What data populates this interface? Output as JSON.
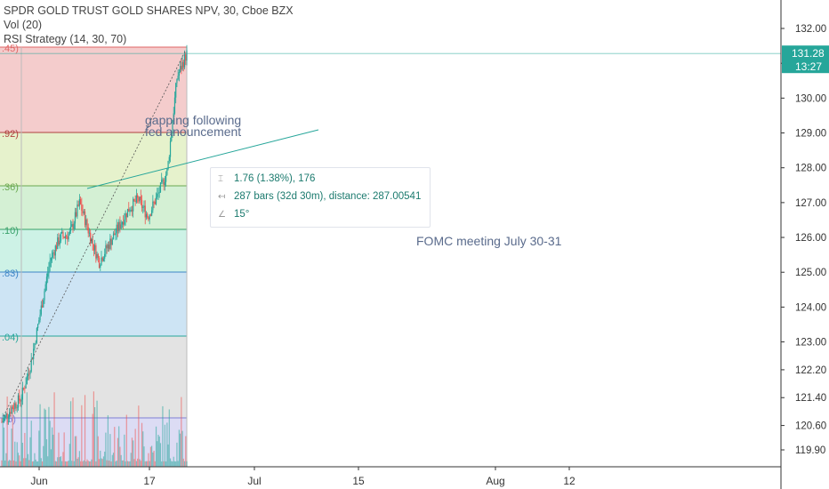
{
  "legend": {
    "title": "SPDR GOLD TRUST GOLD SHARES NPV, 30, Cboe BZX",
    "vol": "Vol (20)",
    "rsi": "RSI Strategy (14, 30, 70)"
  },
  "measure": {
    "price_change": "1.76 (1.38%), 176",
    "bars": "287 bars (32d 30m), distance: 287.00541",
    "angle": "15°"
  },
  "annotations": {
    "gap_line1": "gapping following",
    "gap_line2": "fed anouncement",
    "fomc": "FOMC meeting July 30-31"
  },
  "price_badge": {
    "price": "131.28",
    "time": "13:27"
  },
  "colors": {
    "accent": "#26a69a",
    "price_line": "#26a69a",
    "up": "#26a69a",
    "down": "#ef5350"
  },
  "chart_data": {
    "type": "candlestick",
    "y_axis": {
      "ticks": [
        "132.00",
        "131.00",
        "130.00",
        "129.00",
        "128.00",
        "127.00",
        "126.00",
        "125.00",
        "124.00",
        "123.00",
        "122.20",
        "121.40",
        "120.60",
        "119.90"
      ],
      "ylim": [
        119.6,
        132.4
      ]
    },
    "x_axis": {
      "ticks": [
        "Jun",
        "17",
        "Jul",
        "15",
        "Aug",
        "12"
      ]
    },
    "fib_labels": [
      ".45)",
      ".92)",
      ".36)",
      ".10)",
      ".83)",
      ".04)",
      "75)"
    ],
    "ohlc_path": [
      [
        "May 28",
        120.7
      ],
      [
        "May 29",
        121.1
      ],
      [
        "May 30",
        121.4
      ],
      [
        "May 31",
        122.4
      ],
      [
        "Jun 3",
        123.9
      ],
      [
        "Jun 4",
        125.4
      ],
      [
        "Jun 5",
        126.0
      ],
      [
        "Jun 6",
        126.1
      ],
      [
        "Jun 7",
        127.0
      ],
      [
        "Jun 10",
        126.1
      ],
      [
        "Jun 11",
        125.3
      ],
      [
        "Jun 12",
        125.8
      ],
      [
        "Jun 13",
        126.3
      ],
      [
        "Jun 14",
        126.8
      ],
      [
        "Jun 17",
        127.1
      ],
      [
        "Jun 18",
        126.6
      ],
      [
        "Jun 19",
        127.2
      ],
      [
        "Jun 20",
        127.9
      ],
      [
        "Jun 21",
        130.6
      ],
      [
        "Jun 21 13:27",
        131.28
      ]
    ],
    "current_price": 131.28
  }
}
